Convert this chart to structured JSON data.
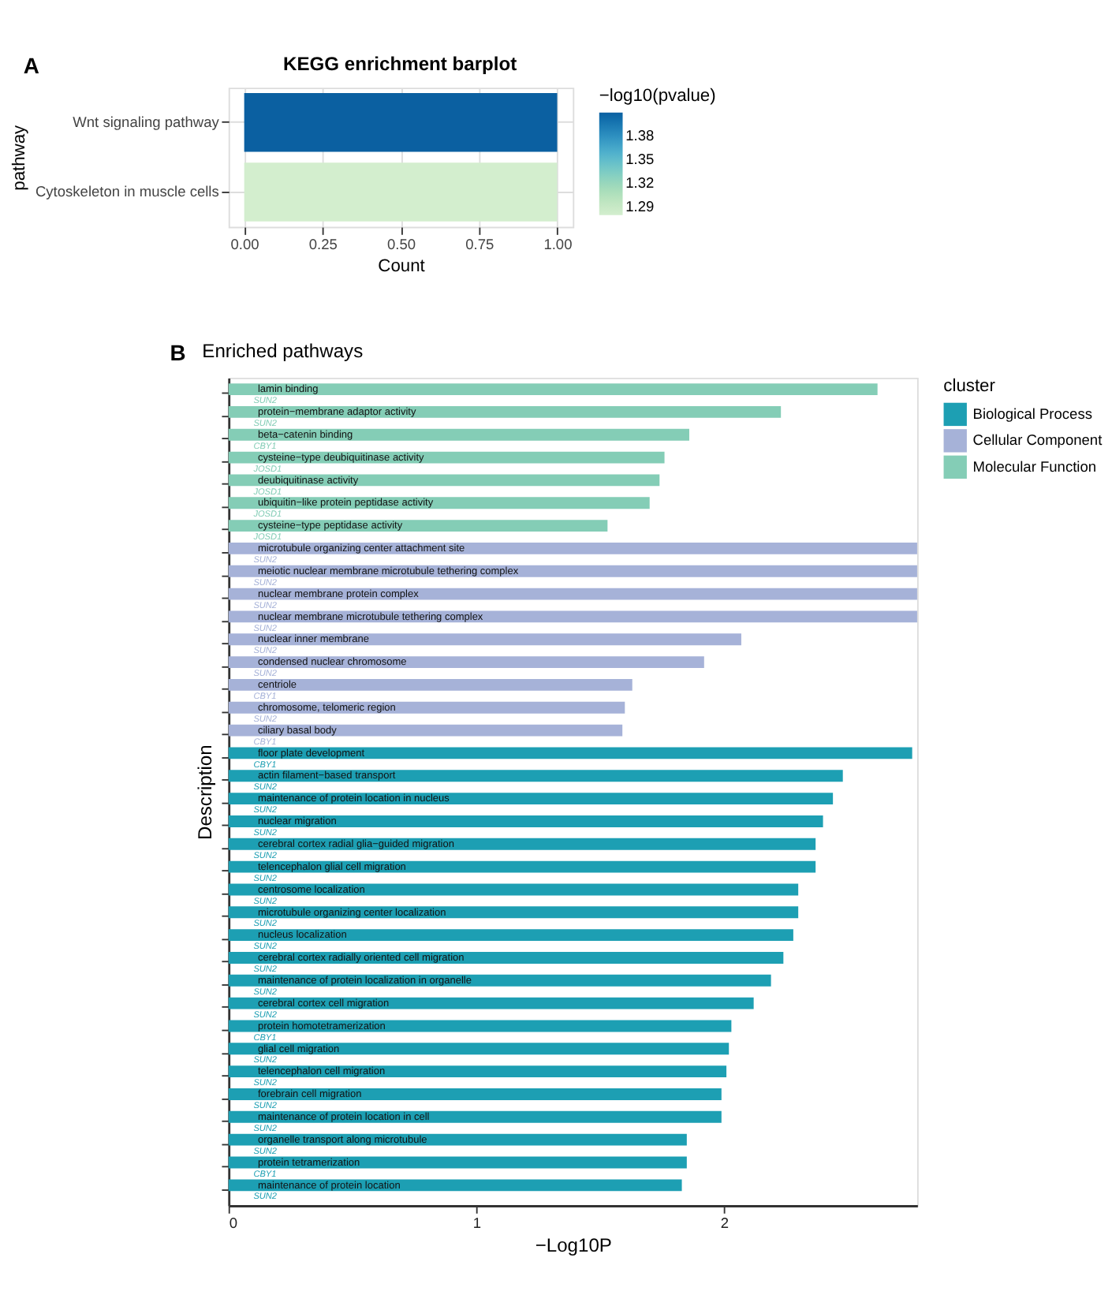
{
  "chart_data": [
    {
      "type": "bar",
      "orientation": "horizontal",
      "title": "KEGG enrichment barplot",
      "xlabel": "Count",
      "ylabel": "pathway",
      "legend_title": "−log10(pvalue)",
      "categories": [
        "Wnt signaling pathway",
        "Cytoskeleton in muscle cells"
      ],
      "values": [
        1,
        1
      ],
      "cvalues": [
        1.41,
        1.28
      ],
      "clim": [
        1.28,
        1.41
      ],
      "cticks": [
        1.29,
        1.32,
        1.35,
        1.38
      ],
      "xlim": [
        -0.05,
        1.05
      ],
      "xticks": [
        {
          "value": 0,
          "label": "0.00"
        },
        {
          "value": 0.25,
          "label": "0.25"
        },
        {
          "value": 0.5,
          "label": "0.50"
        },
        {
          "value": 0.75,
          "label": "0.75"
        },
        {
          "value": 1,
          "label": "1.00"
        }
      ],
      "grid": true,
      "annotations": [
        "A"
      ]
    },
    {
      "type": "bar",
      "orientation": "horizontal",
      "title": "Enriched pathways",
      "xlabel": "−Log10P",
      "ylabel": "Description",
      "legend_title": "cluster",
      "categories": [
        "lamin binding",
        "protein−membrane adaptor activity",
        "beta−catenin binding",
        "cysteine−type deubiquitinase activity",
        "deubiquitinase activity",
        "ubiquitin−like protein peptidase activity",
        "cysteine−type peptidase activity",
        "microtubule organizing center attachment site",
        "meiotic nuclear membrane microtubule tethering complex",
        "nuclear membrane protein complex",
        "nuclear membrane microtubule tethering complex",
        "nuclear inner membrane",
        "condensed nuclear chromosome",
        "centriole",
        "chromosome, telomeric region",
        "ciliary basal body",
        "floor plate development",
        "actin filament−based transport",
        "maintenance of protein location in nucleus",
        "nuclear migration",
        "cerebral cortex radial glia−guided migration",
        "telencephalon glial cell migration",
        "centrosome localization",
        "microtubule organizing center localization",
        "nucleus localization",
        "cerebral cortex radially oriented cell migration",
        "maintenance of protein localization in organelle",
        "cerebral cortex cell migration",
        "protein homotetramerization",
        "glial cell migration",
        "telencephalon cell migration",
        "forebrain cell migration",
        "maintenance of protein location in cell",
        "organelle transport along microtubule",
        "protein tetramerization",
        "maintenance of protein location"
      ],
      "series": [
        {
          "name": "Biological Process",
          "color": "#1d9fb3",
          "values": [
            null,
            null,
            null,
            null,
            null,
            null,
            null,
            null,
            null,
            null,
            null,
            null,
            null,
            null,
            null,
            null,
            2.76,
            2.48,
            2.44,
            2.4,
            2.37,
            2.37,
            2.3,
            2.3,
            2.28,
            2.24,
            2.19,
            2.12,
            2.03,
            2.02,
            2.01,
            1.99,
            1.99,
            1.85,
            1.85,
            1.83
          ]
        },
        {
          "name": "Cellular Component",
          "color": "#a6b2d8",
          "values": [
            null,
            null,
            null,
            null,
            null,
            null,
            null,
            2.78,
            2.78,
            2.78,
            2.78,
            2.07,
            1.92,
            1.63,
            1.6,
            1.59,
            null,
            null,
            null,
            null,
            null,
            null,
            null,
            null,
            null,
            null,
            null,
            null,
            null,
            null,
            null,
            null,
            null,
            null,
            null,
            null
          ]
        },
        {
          "name": "Molecular Function",
          "color": "#84cdb6",
          "values": [
            2.62,
            2.23,
            1.86,
            1.76,
            1.74,
            1.7,
            1.53,
            null,
            null,
            null,
            null,
            null,
            null,
            null,
            null,
            null,
            null,
            null,
            null,
            null,
            null,
            null,
            null,
            null,
            null,
            null,
            null,
            null,
            null,
            null,
            null,
            null,
            null,
            null,
            null,
            null
          ]
        }
      ],
      "xlim": [
        0,
        2.78
      ],
      "xticks": [
        0,
        1,
        2
      ],
      "tick_labels": "x",
      "grid": false,
      "legend": "right",
      "annotations": [
        "B",
        "SUN2",
        "SUN2",
        "CBY1",
        "JOSD1",
        "JOSD1",
        "JOSD1",
        "JOSD1",
        "SUN2",
        "SUN2",
        "SUN2",
        "SUN2",
        "SUN2",
        "SUN2",
        "CBY1",
        "SUN2",
        "CBY1",
        "CBY1",
        "SUN2",
        "SUN2",
        "SUN2",
        "SUN2",
        "SUN2",
        "SUN2",
        "SUN2",
        "SUN2",
        "SUN2",
        "SUN2",
        "SUN2",
        "CBY1",
        "SUN2",
        "SUN2",
        "SUN2",
        "SUN2",
        "SUN2",
        "CBY1",
        "SUN2"
      ]
    }
  ]
}
